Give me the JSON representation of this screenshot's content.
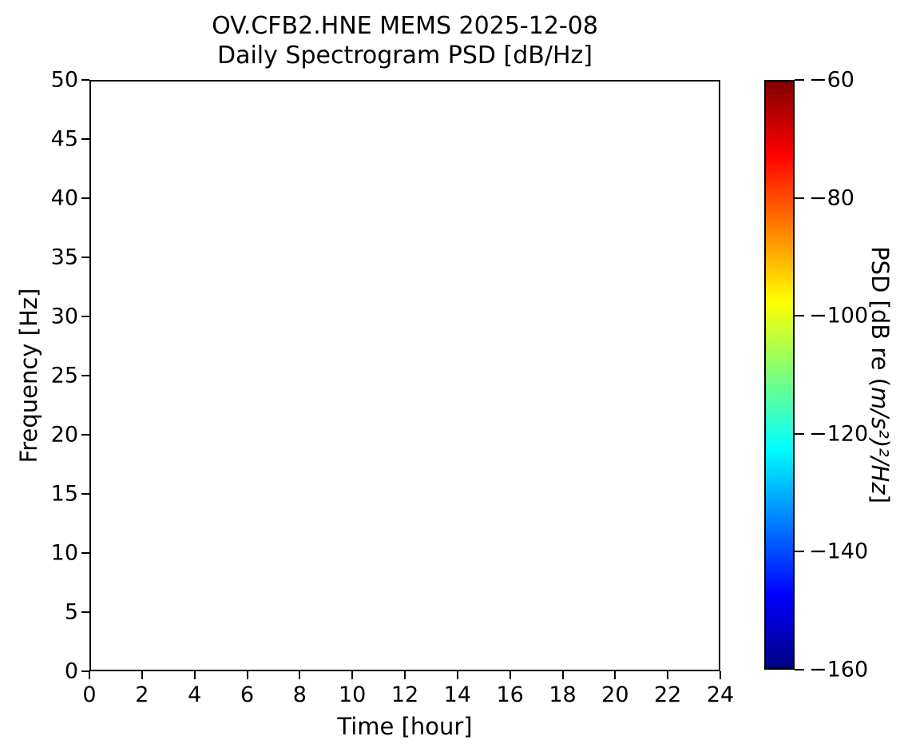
{
  "figure": {
    "background": "#ffffff",
    "axis_color": "#000000",
    "text_color": "#000000"
  },
  "chart_data": {
    "type": "heatmap",
    "subtype": "spectrogram",
    "title_lines": {
      "0": "OV.CFB2.HNE MEMS 2025-12-08",
      "1": "Daily Spectrogram PSD [dB/Hz]"
    },
    "xlabel": "Time [hour]",
    "ylabel": "Frequency [Hz]",
    "xlim": [
      0,
      24
    ],
    "ylim": [
      0,
      50
    ],
    "x_ticks": [
      0,
      2,
      4,
      6,
      8,
      10,
      12,
      14,
      16,
      18,
      20,
      22,
      24
    ],
    "x_tick_labels": [
      "0",
      "2",
      "4",
      "6",
      "8",
      "10",
      "12",
      "14",
      "16",
      "18",
      "20",
      "22",
      "24"
    ],
    "y_ticks": [
      0,
      5,
      10,
      15,
      20,
      25,
      30,
      35,
      40,
      45,
      50
    ],
    "y_tick_labels": [
      "0",
      "5",
      "10",
      "15",
      "20",
      "25",
      "30",
      "35",
      "40",
      "45",
      "50"
    ],
    "values": [],
    "plot_area_fill": "#ffffff",
    "grid": false,
    "colorbar": {
      "label_prefix": "PSD [dB re (",
      "label_math": "m/s²)²/Hz",
      "label_suffix": "]",
      "vmin": -160,
      "vmax": -60,
      "ticks": [
        -60,
        -80,
        -100,
        -120,
        -140,
        -160
      ],
      "tick_labels": [
        "−60",
        "−80",
        "−100",
        "−120",
        "−140",
        "−160"
      ],
      "colormap": "jet",
      "gradient_stops_top_to_bottom": [
        {
          "pos": 0.0,
          "color": "#800000"
        },
        {
          "pos": 0.125,
          "color": "#ff0000"
        },
        {
          "pos": 0.375,
          "color": "#ffff00"
        },
        {
          "pos": 0.5,
          "color": "#7dff7a"
        },
        {
          "pos": 0.625,
          "color": "#00ffff"
        },
        {
          "pos": 0.875,
          "color": "#0000ff"
        },
        {
          "pos": 1.0,
          "color": "#000080"
        }
      ]
    }
  }
}
